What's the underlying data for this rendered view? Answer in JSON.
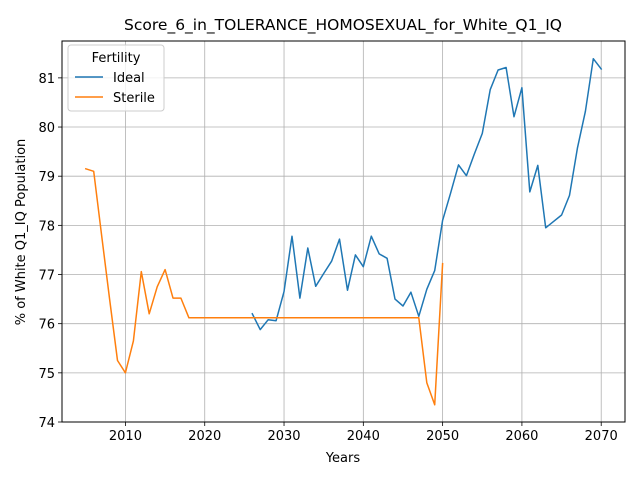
{
  "chart_data": {
    "type": "line",
    "title": "Score_6_in_TOLERANCE_HOMOSEXUAL_for_White_Q1_IQ",
    "xlabel": "Years",
    "ylabel": "% of White Q1_IQ Population",
    "xlim": [
      2002,
      2073
    ],
    "ylim": [
      74,
      81.75
    ],
    "xticks": [
      2010,
      2020,
      2030,
      2040,
      2050,
      2060,
      2070
    ],
    "yticks": [
      74,
      75,
      76,
      77,
      78,
      79,
      80,
      81
    ],
    "grid": true,
    "legend": {
      "title": "Fertility",
      "placement": "upper left"
    },
    "series": [
      {
        "name": "Ideal",
        "color": "#1f77b4",
        "x": [
          2026,
          2027,
          2028,
          2029,
          2030,
          2031,
          2032,
          2033,
          2034,
          2035,
          2036,
          2037,
          2038,
          2039,
          2040,
          2041,
          2042,
          2043,
          2044,
          2045,
          2046,
          2047,
          2048,
          2049,
          2050,
          2051,
          2052,
          2053,
          2054,
          2055,
          2056,
          2057,
          2058,
          2059,
          2060,
          2061,
          2062,
          2063,
          2064,
          2065,
          2066,
          2067,
          2068,
          2069,
          2070
        ],
        "values": [
          76.2,
          75.88,
          76.08,
          76.06,
          76.65,
          77.78,
          76.52,
          77.54,
          76.76,
          77.02,
          77.27,
          77.72,
          76.68,
          77.4,
          77.16,
          77.78,
          77.42,
          77.33,
          76.5,
          76.36,
          76.64,
          76.15,
          76.7,
          77.08,
          78.1,
          78.65,
          79.23,
          79.01,
          79.45,
          79.87,
          80.76,
          81.16,
          81.21,
          80.21,
          80.8,
          78.68,
          79.22,
          77.95,
          78.08,
          78.21,
          78.61,
          79.57,
          80.32,
          81.39,
          81.18
        ]
      },
      {
        "name": "Sterile",
        "color": "#ff7f0e",
        "x": [
          2005,
          2006,
          2007,
          2008,
          2009,
          2010,
          2011,
          2012,
          2013,
          2014,
          2015,
          2016,
          2017,
          2018,
          2019,
          2020,
          2021,
          2022,
          2023,
          2024,
          2025,
          2026,
          2027,
          2028,
          2029,
          2030,
          2031,
          2032,
          2033,
          2034,
          2035,
          2036,
          2037,
          2038,
          2039,
          2040,
          2041,
          2042,
          2043,
          2044,
          2045,
          2046,
          2047,
          2048,
          2049,
          2050
        ],
        "values": [
          79.15,
          79.1,
          77.8,
          76.5,
          75.25,
          75.0,
          75.65,
          77.06,
          76.2,
          76.75,
          77.1,
          76.52,
          76.52,
          76.12,
          76.12,
          76.12,
          76.12,
          76.12,
          76.12,
          76.12,
          76.12,
          76.12,
          76.12,
          76.12,
          76.12,
          76.12,
          76.12,
          76.12,
          76.12,
          76.12,
          76.12,
          76.12,
          76.12,
          76.12,
          76.12,
          76.12,
          76.12,
          76.12,
          76.12,
          76.12,
          76.12,
          76.12,
          76.12,
          74.8,
          74.35,
          77.22
        ]
      }
    ]
  }
}
